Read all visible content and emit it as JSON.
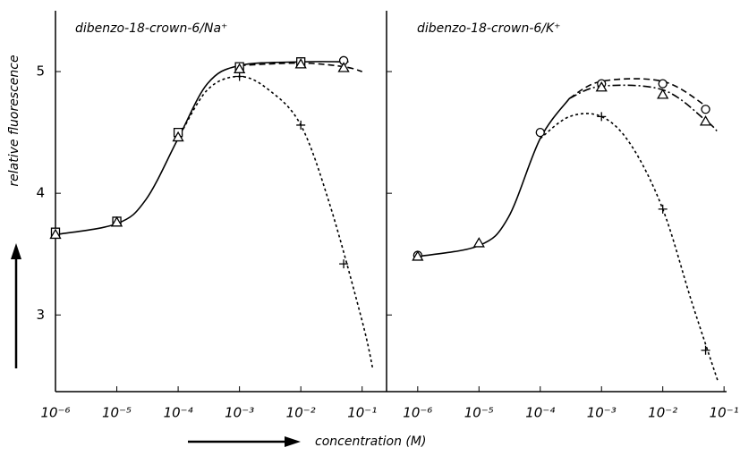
{
  "chart_data": [
    {
      "type": "line",
      "title": "dibenzo-18-crown-6/Na⁺",
      "ylabel": "relative fluorescence",
      "xlabel": "concentration (M)",
      "color": "#000000",
      "log_x": true,
      "ytick_labels": true,
      "xlim": [
        1e-06,
        0.25
      ],
      "ylim": [
        2.37,
        5.5
      ],
      "xticks": [
        {
          "value": 1e-06,
          "label": "10⁻⁶"
        },
        {
          "value": 1e-05,
          "label": "10⁻⁵"
        },
        {
          "value": 0.0001,
          "label": "10⁻⁴"
        },
        {
          "value": 0.001,
          "label": "10⁻³"
        },
        {
          "value": 0.01,
          "label": "10⁻²"
        },
        {
          "value": 0.1,
          "label": "10⁻¹"
        }
      ],
      "yticks": [
        3,
        4,
        5
      ],
      "curves": [
        {
          "dash": "solid",
          "x": [
            1e-06,
            1e-05,
            3e-05,
            0.0001,
            0.0003,
            0.001,
            0.01,
            0.06
          ],
          "values": [
            3.66,
            3.75,
            3.95,
            4.45,
            4.9,
            5.05,
            5.08,
            5.08
          ]
        },
        {
          "dash": "dashed",
          "x": [
            0.001,
            0.01,
            0.05,
            0.1
          ],
          "values": [
            5.05,
            5.07,
            5.04,
            5.0
          ]
        },
        {
          "dash": "dotted",
          "x": [
            0.0001,
            0.0003,
            0.001,
            0.003,
            0.01,
            0.03,
            0.1,
            0.15
          ],
          "values": [
            4.45,
            4.85,
            4.96,
            4.85,
            4.56,
            3.9,
            2.95,
            2.55
          ]
        }
      ],
      "series": [
        {
          "marker": "circle",
          "x": [
            1e-06,
            1e-05,
            0.0001,
            0.001,
            0.01,
            0.05
          ],
          "values": [
            3.68,
            3.77,
            4.48,
            5.03,
            5.08,
            5.09
          ]
        },
        {
          "marker": "square",
          "x": [
            1e-06,
            1e-05,
            0.0001,
            0.001,
            0.01
          ],
          "values": [
            3.68,
            3.77,
            4.5,
            5.04,
            5.08
          ]
        },
        {
          "marker": "triangle",
          "x": [
            1e-06,
            1e-05,
            0.0001,
            0.001,
            0.01,
            0.05
          ],
          "values": [
            3.66,
            3.76,
            4.46,
            5.02,
            5.06,
            5.03
          ]
        },
        {
          "marker": "cross",
          "x": [
            0.001,
            0.01,
            0.05
          ],
          "values": [
            4.96,
            4.56,
            3.42
          ]
        }
      ]
    },
    {
      "type": "line",
      "title": "dibenzo-18-crown-6/K⁺",
      "color": "#000000",
      "log_x": true,
      "ytick_labels": false,
      "xlim": [
        3.1e-07,
        0.11
      ],
      "ylim": [
        2.37,
        5.5
      ],
      "xticks": [
        {
          "value": 1e-06,
          "label": "10⁻⁶"
        },
        {
          "value": 1e-05,
          "label": "10⁻⁵"
        },
        {
          "value": 0.0001,
          "label": "10⁻⁴"
        },
        {
          "value": 0.001,
          "label": "10⁻³"
        },
        {
          "value": 0.01,
          "label": "10⁻²"
        },
        {
          "value": 0.1,
          "label": "10⁻¹"
        }
      ],
      "yticks": [
        3,
        4,
        5
      ],
      "curves": [
        {
          "dash": "solid",
          "x": [
            1e-06,
            1e-05,
            3e-05,
            0.0001,
            0.0003
          ],
          "values": [
            3.48,
            3.57,
            3.8,
            4.45,
            4.78
          ]
        },
        {
          "dash": "dashdot",
          "x": [
            0.0003,
            0.001,
            0.01,
            0.05,
            0.08
          ],
          "values": [
            4.78,
            4.88,
            4.85,
            4.6,
            4.5
          ]
        },
        {
          "dash": "dashed",
          "x": [
            0.0003,
            0.001,
            0.01,
            0.05
          ],
          "values": [
            4.78,
            4.92,
            4.92,
            4.72
          ]
        },
        {
          "dash": "dotted",
          "x": [
            0.0001,
            0.0003,
            0.001,
            0.003,
            0.01,
            0.03,
            0.08
          ],
          "values": [
            4.45,
            4.63,
            4.63,
            4.4,
            3.87,
            3.1,
            2.45
          ]
        }
      ],
      "series": [
        {
          "marker": "circle",
          "x": [
            1e-06,
            0.0001,
            0.001,
            0.01,
            0.05
          ],
          "values": [
            3.49,
            4.5,
            4.9,
            4.9,
            4.69
          ]
        },
        {
          "marker": "triangle",
          "x": [
            1e-06,
            1e-05,
            0.001,
            0.01,
            0.05
          ],
          "values": [
            3.48,
            3.59,
            4.87,
            4.81,
            4.59
          ]
        },
        {
          "marker": "cross",
          "x": [
            0.001,
            0.01,
            0.05
          ],
          "values": [
            4.63,
            3.87,
            2.71
          ]
        }
      ]
    }
  ]
}
